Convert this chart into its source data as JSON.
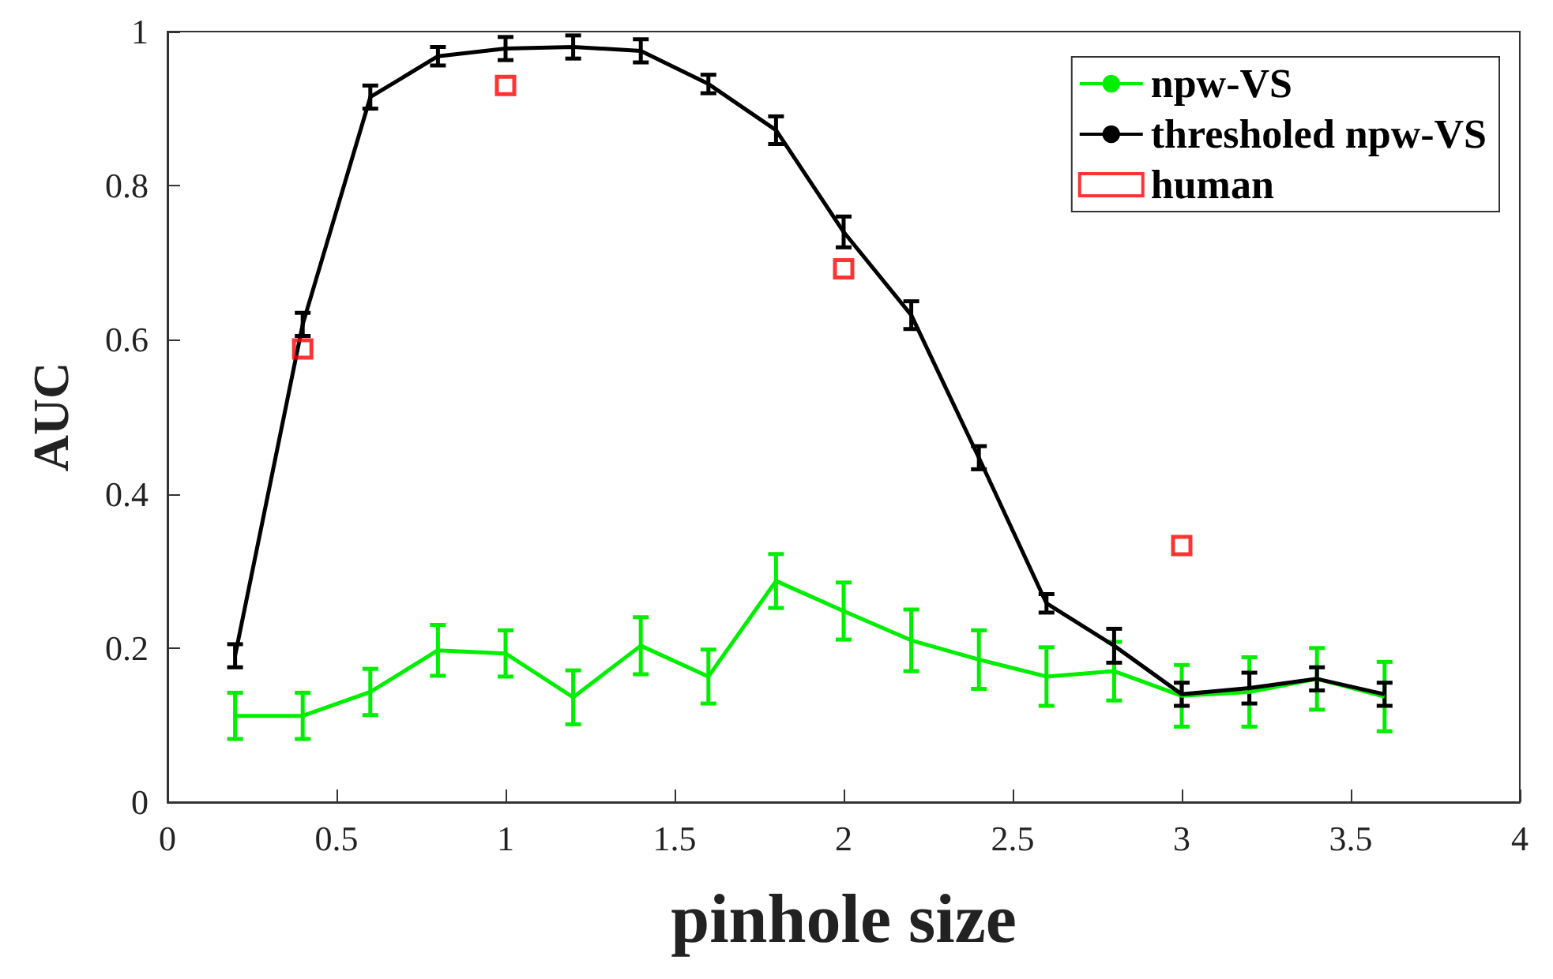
{
  "chart_data": {
    "type": "line",
    "xlabel": "pinhole size",
    "ylabel": "AUC",
    "xlim": [
      0,
      4
    ],
    "xticks": [
      0,
      0.5,
      1,
      1.5,
      2,
      2.5,
      3,
      3.5,
      4
    ],
    "ylim": [
      0,
      1
    ],
    "yticks": [
      0,
      0.2,
      0.4,
      0.6,
      0.8,
      1
    ],
    "grid": false,
    "legend": "top right",
    "marker": "none",
    "x": [
      0.2,
      0.4,
      0.6,
      0.8,
      1,
      1.2,
      1.4,
      1.6,
      1.8,
      2,
      2.2,
      2.4,
      2.6,
      2.8,
      3,
      3.2,
      3.4,
      3.6
    ],
    "series": [
      {
        "name": "npw-VS",
        "color": "#00ee00",
        "values": [
          0.112,
          0.112,
          0.143,
          0.197,
          0.193,
          0.136,
          0.203,
          0.163,
          0.287,
          0.248,
          0.21,
          0.185,
          0.163,
          0.17,
          0.138,
          0.143,
          0.16,
          0.137
        ],
        "errors": [
          0.03,
          0.03,
          0.03,
          0.033,
          0.03,
          0.035,
          0.037,
          0.035,
          0.035,
          0.037,
          0.04,
          0.038,
          0.038,
          0.038,
          0.04,
          0.045,
          0.04,
          0.045
        ]
      },
      {
        "name": "thresholed npw-VS",
        "color": "#000000",
        "values": [
          0.19,
          0.62,
          0.915,
          0.968,
          0.978,
          0.98,
          0.975,
          0.932,
          0.872,
          0.74,
          0.632,
          0.447,
          0.258,
          0.203,
          0.14,
          0.148,
          0.16,
          0.14
        ],
        "errors": [
          0.015,
          0.015,
          0.015,
          0.012,
          0.015,
          0.015,
          0.015,
          0.012,
          0.018,
          0.02,
          0.018,
          0.015,
          0.012,
          0.022,
          0.015,
          0.02,
          0.015,
          0.015
        ]
      },
      {
        "name": "human",
        "type": "scatter",
        "marker": "square",
        "color": "#ff0000",
        "x": [
          0.4,
          1,
          2,
          3
        ],
        "values": [
          0.588,
          0.93,
          0.692,
          0.333
        ]
      }
    ]
  }
}
